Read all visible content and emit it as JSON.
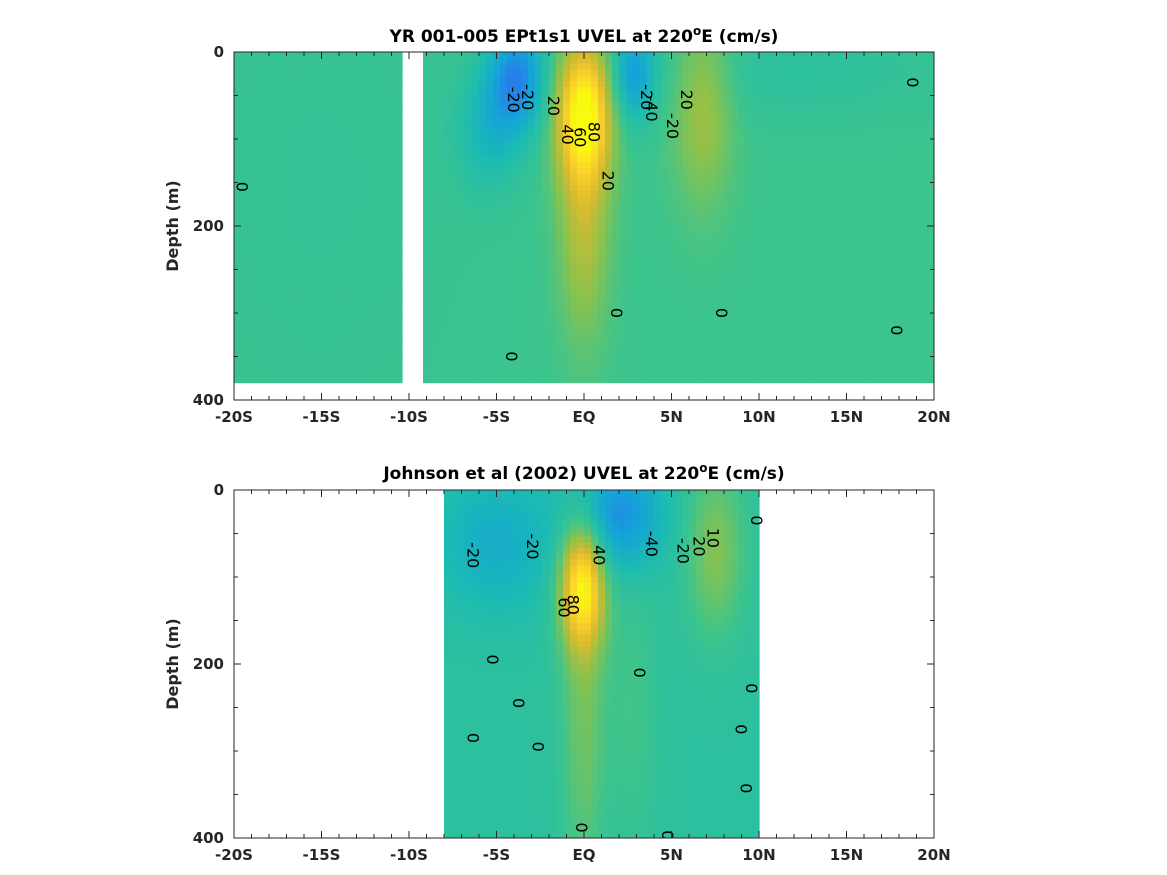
{
  "chart_data": [
    {
      "type": "heatmap",
      "title": "YR 001-005 EPt1s1 UVEL at 220",
      "title_sup": "o",
      "title_tail": "E (cm/s)",
      "ylabel": "Depth (m)",
      "xlabel": "",
      "x_ticks": [
        "-20S",
        "-15S",
        "-10S",
        "-5S",
        "EQ",
        "5N",
        "10N",
        "15N",
        "20N"
      ],
      "y_ticks": [
        "0",
        "200",
        "400"
      ],
      "xlim": [
        -20,
        20
      ],
      "ylim": [
        0,
        400
      ],
      "grid": false,
      "colormap": [
        "#3e26a8",
        "#2f6ef0",
        "#14a3d9",
        "#1cbbb2",
        "#3bc48e",
        "#8cc24c",
        "#d9ba2e",
        "#fcd22a",
        "#f9fb0e"
      ],
      "color_range": [
        -80,
        100
      ],
      "background": 10,
      "gaps": [
        [
          -10.3,
          -9.4
        ]
      ],
      "data_extent": {
        "x": [
          -20,
          20
        ],
        "depth": [
          0,
          380
        ]
      },
      "features": [
        {
          "x": 0,
          "depth": 70,
          "sx": 1.1,
          "sd": 55,
          "value": 90
        },
        {
          "x": 0,
          "depth": 200,
          "sx": 1.0,
          "sd": 90,
          "value": 35
        },
        {
          "x": -3.8,
          "depth": 30,
          "sx": 1.2,
          "sd": 45,
          "value": -55
        },
        {
          "x": -5.5,
          "depth": 90,
          "sx": 1.3,
          "sd": 50,
          "value": -25
        },
        {
          "x": 2.8,
          "depth": 25,
          "sx": 0.9,
          "sd": 40,
          "value": -45
        },
        {
          "x": 6.8,
          "depth": 60,
          "sx": 1.2,
          "sd": 80,
          "value": 30
        },
        {
          "x": 12,
          "depth": 20,
          "sx": 6,
          "sd": 40,
          "value": -10
        },
        {
          "x": -15,
          "depth": 150,
          "sx": 5,
          "sd": 200,
          "value": -5
        }
      ],
      "contour_labels": [
        {
          "text": "0",
          "x": -19.6,
          "depth": 155
        },
        {
          "text": "-20",
          "x": -4.1,
          "depth": 55
        },
        {
          "text": "-20",
          "x": -3.3,
          "depth": 52
        },
        {
          "text": "20",
          "x": -1.8,
          "depth": 62
        },
        {
          "text": "40",
          "x": -1.0,
          "depth": 95
        },
        {
          "text": "60",
          "x": -0.3,
          "depth": 98
        },
        {
          "text": "80",
          "x": 0.5,
          "depth": 92
        },
        {
          "text": "20",
          "x": 1.3,
          "depth": 148
        },
        {
          "text": "-20",
          "x": 3.5,
          "depth": 52
        },
        {
          "text": "-40",
          "x": 3.8,
          "depth": 65
        },
        {
          "text": "-20",
          "x": 5.0,
          "depth": 85
        },
        {
          "text": "20",
          "x": 5.8,
          "depth": 55
        },
        {
          "text": "0",
          "x": 1.8,
          "depth": 300
        },
        {
          "text": "0",
          "x": 7.8,
          "depth": 300
        },
        {
          "text": "0",
          "x": -4.2,
          "depth": 350
        },
        {
          "text": "0",
          "x": 18.7,
          "depth": 35
        },
        {
          "text": "0",
          "x": 17.8,
          "depth": 320
        }
      ]
    },
    {
      "type": "heatmap",
      "title": "Johnson et al (2002) UVEL at 220",
      "title_sup": "o",
      "title_tail": "E (cm/s)",
      "ylabel": "Depth (m)",
      "xlabel": "",
      "x_ticks": [
        "-20S",
        "-15S",
        "-10S",
        "-5S",
        "EQ",
        "5N",
        "10N",
        "15N",
        "20N"
      ],
      "y_ticks": [
        "0",
        "200",
        "400"
      ],
      "xlim": [
        -20,
        20
      ],
      "ylim": [
        0,
        400
      ],
      "grid": false,
      "colormap": [
        "#3e26a8",
        "#2f6ef0",
        "#14a3d9",
        "#1cbbb2",
        "#3bc48e",
        "#8cc24c",
        "#d9ba2e",
        "#fcd22a",
        "#f9fb0e"
      ],
      "color_range": [
        -80,
        100
      ],
      "background": 0,
      "gaps": [],
      "data_extent": {
        "x": [
          -8,
          10
        ],
        "depth": [
          0,
          400
        ]
      },
      "features": [
        {
          "x": -0.1,
          "depth": 110,
          "sx": 0.9,
          "sd": 50,
          "value": 90
        },
        {
          "x": 0,
          "depth": 260,
          "sx": 0.9,
          "sd": 140,
          "value": 25
        },
        {
          "x": 2,
          "depth": 30,
          "sx": 1.8,
          "sd": 45,
          "value": -45
        },
        {
          "x": -5,
          "depth": 60,
          "sx": 2.5,
          "sd": 60,
          "value": -25
        },
        {
          "x": 7.5,
          "depth": 70,
          "sx": 1.2,
          "sd": 70,
          "value": 30
        },
        {
          "x": 2.8,
          "depth": 250,
          "sx": 1.0,
          "sd": 120,
          "value": 12
        }
      ],
      "contour_labels": [
        {
          "text": "-20",
          "x": -6.4,
          "depth": 75
        },
        {
          "text": "-20",
          "x": -3.0,
          "depth": 65
        },
        {
          "text": "40",
          "x": 0.8,
          "depth": 75
        },
        {
          "text": "-40",
          "x": 3.8,
          "depth": 62
        },
        {
          "text": "-20",
          "x": 5.6,
          "depth": 70
        },
        {
          "text": "20",
          "x": 6.5,
          "depth": 65
        },
        {
          "text": "10",
          "x": 7.3,
          "depth": 55
        },
        {
          "text": "0",
          "x": 9.8,
          "depth": 35
        },
        {
          "text": "60",
          "x": -1.2,
          "depth": 135
        },
        {
          "text": "80",
          "x": -0.7,
          "depth": 132
        },
        {
          "text": "0",
          "x": -5.3,
          "depth": 195
        },
        {
          "text": "0",
          "x": -3.8,
          "depth": 245
        },
        {
          "text": "0",
          "x": -6.4,
          "depth": 285
        },
        {
          "text": "0",
          "x": -2.7,
          "depth": 295
        },
        {
          "text": "0",
          "x": 3.1,
          "depth": 210
        },
        {
          "text": "0",
          "x": 9.5,
          "depth": 228
        },
        {
          "text": "0",
          "x": 8.9,
          "depth": 275
        },
        {
          "text": "0",
          "x": 9.2,
          "depth": 343
        },
        {
          "text": "0",
          "x": -0.2,
          "depth": 388
        },
        {
          "text": "0",
          "x": 4.7,
          "depth": 397
        }
      ]
    }
  ]
}
